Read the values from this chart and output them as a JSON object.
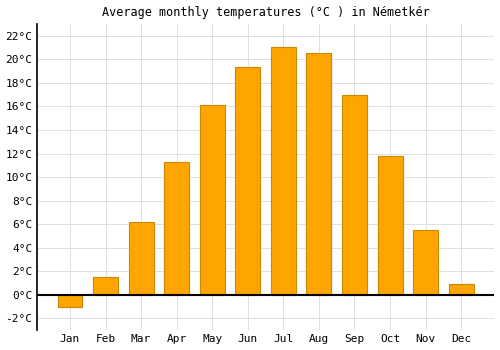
{
  "title": "Average monthly temperatures (°C ) in Németkér",
  "months": [
    "Jan",
    "Feb",
    "Mar",
    "Apr",
    "May",
    "Jun",
    "Jul",
    "Aug",
    "Sep",
    "Oct",
    "Nov",
    "Dec"
  ],
  "values": [
    -1.0,
    1.5,
    6.2,
    11.3,
    16.1,
    19.3,
    21.0,
    20.5,
    17.0,
    11.8,
    5.5,
    0.9
  ],
  "bar_color": "#FFA500",
  "bar_edge_color": "#CC8800",
  "background_color": "#ffffff",
  "grid_color": "#e0e0e0",
  "ylim": [
    -3,
    23
  ],
  "ytick_vals": [
    -2,
    0,
    2,
    4,
    6,
    8,
    10,
    12,
    14,
    16,
    18,
    20,
    22
  ],
  "bar_width": 0.7,
  "title_fontsize": 8.5,
  "tick_fontsize": 8
}
